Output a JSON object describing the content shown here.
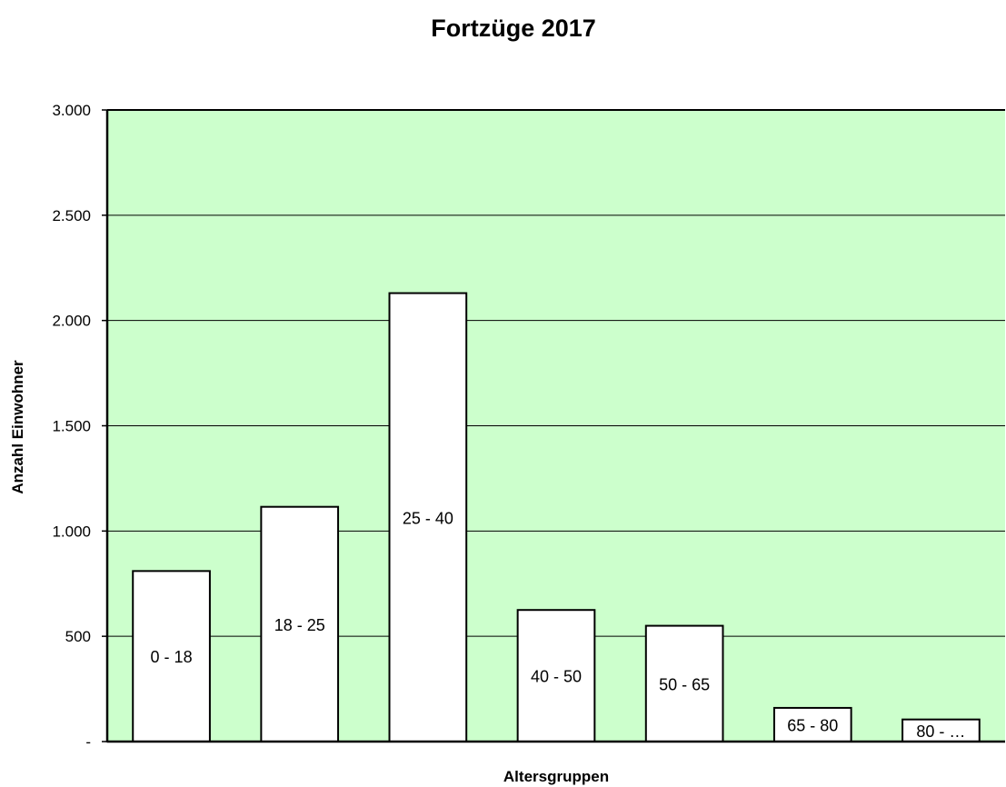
{
  "chart_data": {
    "type": "bar",
    "title": "Fortzüge 2017",
    "xlabel": "Altersgruppen",
    "ylabel": "Anzahl Einwohner",
    "categories": [
      "0 - 18",
      "18 - 25",
      "25 - 40",
      "40 - 50",
      "50 - 65",
      "65 - 80",
      "80 - …"
    ],
    "values": [
      810,
      1115,
      2130,
      625,
      550,
      160,
      105
    ],
    "ylim": [
      0,
      3000
    ],
    "yticks": [
      0,
      500,
      1000,
      1500,
      2000,
      2500,
      3000
    ],
    "ytick_labels": [
      "-",
      "500",
      "1.000",
      "1.500",
      "2.000",
      "2.500",
      "3.000"
    ],
    "grid": true,
    "legend": "none",
    "colors": {
      "plot_background": "#ccffcc",
      "bar_fill": "#ffffff",
      "bar_stroke": "#000000",
      "gridline": "#000000"
    }
  }
}
